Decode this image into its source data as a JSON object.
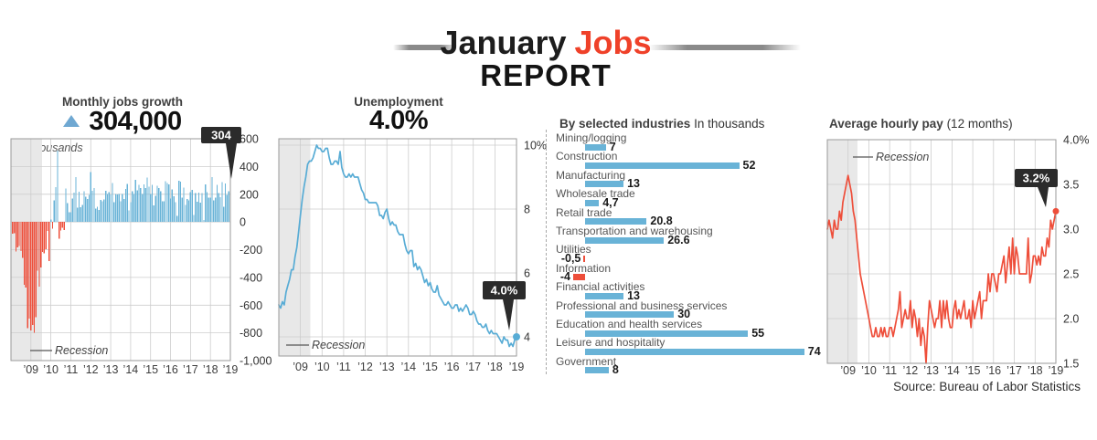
{
  "header": {
    "title_main": "January",
    "title_accent": "Jobs",
    "subtitle": "REPORT"
  },
  "source": "Source: Bureau of Labor Statistics",
  "panels": {
    "jobs_growth": {
      "title": "Monthly jobs growth",
      "headline": "304,000",
      "unit_note": "In thousands"
    },
    "unemployment": {
      "title": "Unemployment",
      "headline": "4.0%"
    },
    "industries": {
      "title": "By selected industries",
      "subtitle": "In thousands"
    },
    "hourly_pay": {
      "title": "Average hourly pay",
      "subtitle": "(12 months)"
    }
  },
  "colors": {
    "blue": "#69b3d7",
    "blue_line": "#58acd5",
    "red": "#ee4e3a",
    "badge": "#2b2b2b",
    "recession_band": "#e8e8e8",
    "grid": "#cdcdcd",
    "accent_title": "#ef4129"
  },
  "chart_data": [
    {
      "id": "jobs_growth",
      "type": "bar",
      "title": "Monthly jobs growth",
      "unit": "In thousands",
      "annotation": "Recession",
      "callout": "304",
      "x_start": "2008-01",
      "x_end": "2019-01",
      "x_tick_labels": [
        "’09",
        "’10",
        "’11",
        "’12",
        "’13",
        "’14",
        "’15",
        "’16",
        "’17",
        "’18",
        "’19"
      ],
      "ylim": [
        -1000,
        600
      ],
      "y_tick_values": [
        600,
        400,
        200,
        0,
        -200,
        -400,
        -600,
        -800,
        -1000
      ],
      "y_tick_labels": [
        "600",
        "400",
        "200",
        "0",
        "-200",
        "-400",
        "-600",
        "-800",
        "-1,000"
      ],
      "values": [
        -17,
        -86,
        -80,
        -214,
        -182,
        -172,
        -210,
        -259,
        -452,
        -474,
        -765,
        -697,
        -783,
        -743,
        -800,
        -686,
        -351,
        -467,
        -327,
        -216,
        -227,
        -198,
        -64,
        -283,
        18,
        -50,
        156,
        251,
        516,
        -122,
        -61,
        -42,
        -57,
        241,
        137,
        71,
        70,
        168,
        212,
        322,
        102,
        217,
        106,
        122,
        221,
        183,
        164,
        196,
        360,
        226,
        243,
        96,
        110,
        88,
        160,
        150,
        161,
        225,
        203,
        214,
        197,
        280,
        141,
        203,
        199,
        201,
        149,
        202,
        164,
        237,
        274,
        84,
        144,
        222,
        203,
        304,
        229,
        267,
        243,
        203,
        271,
        243,
        321,
        256,
        201,
        266,
        119,
        187,
        260,
        245,
        223,
        150,
        149,
        295,
        280,
        271,
        168,
        233,
        186,
        144,
        43,
        297,
        291,
        176,
        249,
        124,
        164,
        155,
        216,
        232,
        50,
        207,
        145,
        210,
        139,
        208,
        14,
        271,
        216,
        175,
        176,
        324,
        155,
        175,
        268,
        208,
        178,
        286,
        108,
        277,
        196,
        222,
        304
      ]
    },
    {
      "id": "unemployment",
      "type": "line",
      "title": "Unemployment",
      "annotation": "Recession",
      "callout": "4.0%",
      "x_start": "2008-01",
      "x_end": "2019-01",
      "x_tick_labels": [
        "’09",
        "’10",
        "’11",
        "’12",
        "’13",
        "’14",
        "’15",
        "’16",
        "’17",
        "’18",
        "’19"
      ],
      "ylim": [
        3.4,
        10.2
      ],
      "y_tick_values": [
        10,
        8,
        6,
        4
      ],
      "y_tick_labels": [
        "10%",
        "8",
        "6",
        "4"
      ],
      "values": [
        5.0,
        4.9,
        5.1,
        5.0,
        5.4,
        5.6,
        5.8,
        6.1,
        6.1,
        6.5,
        6.8,
        7.3,
        7.8,
        8.3,
        8.7,
        9.0,
        9.4,
        9.5,
        9.5,
        9.6,
        9.8,
        10.0,
        9.9,
        9.9,
        9.8,
        9.8,
        9.9,
        9.9,
        9.6,
        9.4,
        9.4,
        9.5,
        9.5,
        9.4,
        9.8,
        9.3,
        9.1,
        9.0,
        9.0,
        9.1,
        9.0,
        9.1,
        9.0,
        9.0,
        9.0,
        8.8,
        8.6,
        8.5,
        8.3,
        8.3,
        8.2,
        8.2,
        8.2,
        8.2,
        8.2,
        8.1,
        7.8,
        7.8,
        7.7,
        7.9,
        8.0,
        7.7,
        7.5,
        7.6,
        7.5,
        7.5,
        7.3,
        7.2,
        7.2,
        7.2,
        6.9,
        6.7,
        6.6,
        6.7,
        6.7,
        6.2,
        6.3,
        6.1,
        6.2,
        6.1,
        5.9,
        5.7,
        5.8,
        5.6,
        5.7,
        5.5,
        5.4,
        5.4,
        5.6,
        5.3,
        5.2,
        5.1,
        5.0,
        5.0,
        5.1,
        5.0,
        4.9,
        4.9,
        5.0,
        5.0,
        4.8,
        4.9,
        4.8,
        4.9,
        5.0,
        4.9,
        4.7,
        4.7,
        4.8,
        4.7,
        4.5,
        4.4,
        4.4,
        4.3,
        4.3,
        4.4,
        4.2,
        4.1,
        4.2,
        4.1,
        4.1,
        4.1,
        4.0,
        3.9,
        3.8,
        4.0,
        3.9,
        3.9,
        3.7,
        3.8,
        3.7,
        3.9,
        4.0
      ]
    },
    {
      "id": "industries",
      "type": "bar-horizontal",
      "title": "By selected industries",
      "subtitle": "In thousands",
      "categories": [
        "Mining/logging",
        "Construction",
        "Manufacturing",
        "Wholesale trade",
        "Retail trade",
        "Transportation and warehousing",
        "Utilities",
        "Information",
        "Financial activities",
        "Professional and business services",
        "Education and health services",
        "Leisure and hospitality",
        "Government"
      ],
      "values": [
        7,
        52,
        13,
        4.7,
        20.8,
        26.6,
        -0.5,
        -4,
        13,
        30,
        55,
        74,
        8
      ],
      "value_labels": [
        "7",
        "52",
        "13",
        "4,7",
        "20.8",
        "26.6",
        "-0,5",
        "-4",
        "13",
        "30",
        "55",
        "74",
        "8"
      ]
    },
    {
      "id": "hourly_pay",
      "type": "line",
      "title": "Average hourly pay (12 months)",
      "annotation": "Recession",
      "callout": "3.2%",
      "x_start": "2008-01",
      "x_end": "2019-01",
      "x_tick_labels": [
        "’09",
        "’10",
        "’11",
        "’12",
        "’13",
        "’14",
        "’15",
        "’16",
        "’17",
        "’18",
        "’19"
      ],
      "ylim": [
        1.5,
        4.0
      ],
      "y_tick_values": [
        4,
        3.5,
        3,
        2.5,
        2,
        1.5
      ],
      "y_tick_labels": [
        "4.0%",
        "3.5",
        "3.0",
        "2.5",
        "2.0",
        "1.5"
      ],
      "values": [
        3.0,
        3.1,
        3.0,
        2.9,
        3.1,
        3.0,
        3.0,
        3.2,
        3.1,
        3.3,
        3.4,
        3.5,
        3.6,
        3.5,
        3.4,
        3.2,
        3.1,
        2.9,
        2.7,
        2.5,
        2.4,
        2.3,
        2.2,
        2.1,
        2.0,
        1.9,
        1.8,
        1.8,
        1.9,
        1.8,
        1.8,
        1.9,
        1.8,
        1.9,
        1.8,
        1.8,
        1.9,
        1.9,
        1.8,
        1.9,
        2.0,
        2.1,
        2.3,
        1.9,
        2.0,
        2.1,
        2.0,
        2.0,
        2.2,
        1.9,
        2.1,
        2.0,
        1.8,
        2.0,
        1.7,
        1.9,
        1.8,
        1.5,
        1.9,
        2.2,
        2.1,
        2.0,
        1.9,
        2.0,
        2.0,
        2.2,
        1.9,
        2.2,
        2.0,
        2.2,
        2.0,
        1.9,
        1.9,
        2.1,
        2.2,
        2.0,
        2.1,
        2.0,
        2.1,
        2.2,
        2.0,
        2.0,
        2.1,
        1.9,
        2.2,
        2.0,
        2.1,
        2.2,
        2.3,
        2.0,
        2.2,
        2.2,
        2.2,
        2.5,
        2.3,
        2.5,
        2.5,
        2.4,
        2.3,
        2.5,
        2.5,
        2.6,
        2.7,
        2.4,
        2.6,
        2.8,
        2.5,
        2.9,
        2.5,
        2.8,
        2.7,
        2.5,
        2.5,
        2.5,
        2.5,
        2.5,
        2.9,
        2.4,
        2.5,
        2.7,
        2.7,
        2.6,
        2.7,
        2.6,
        2.8,
        2.7,
        2.7,
        2.9,
        2.8,
        3.1,
        3.0,
        3.1,
        3.2
      ]
    }
  ]
}
